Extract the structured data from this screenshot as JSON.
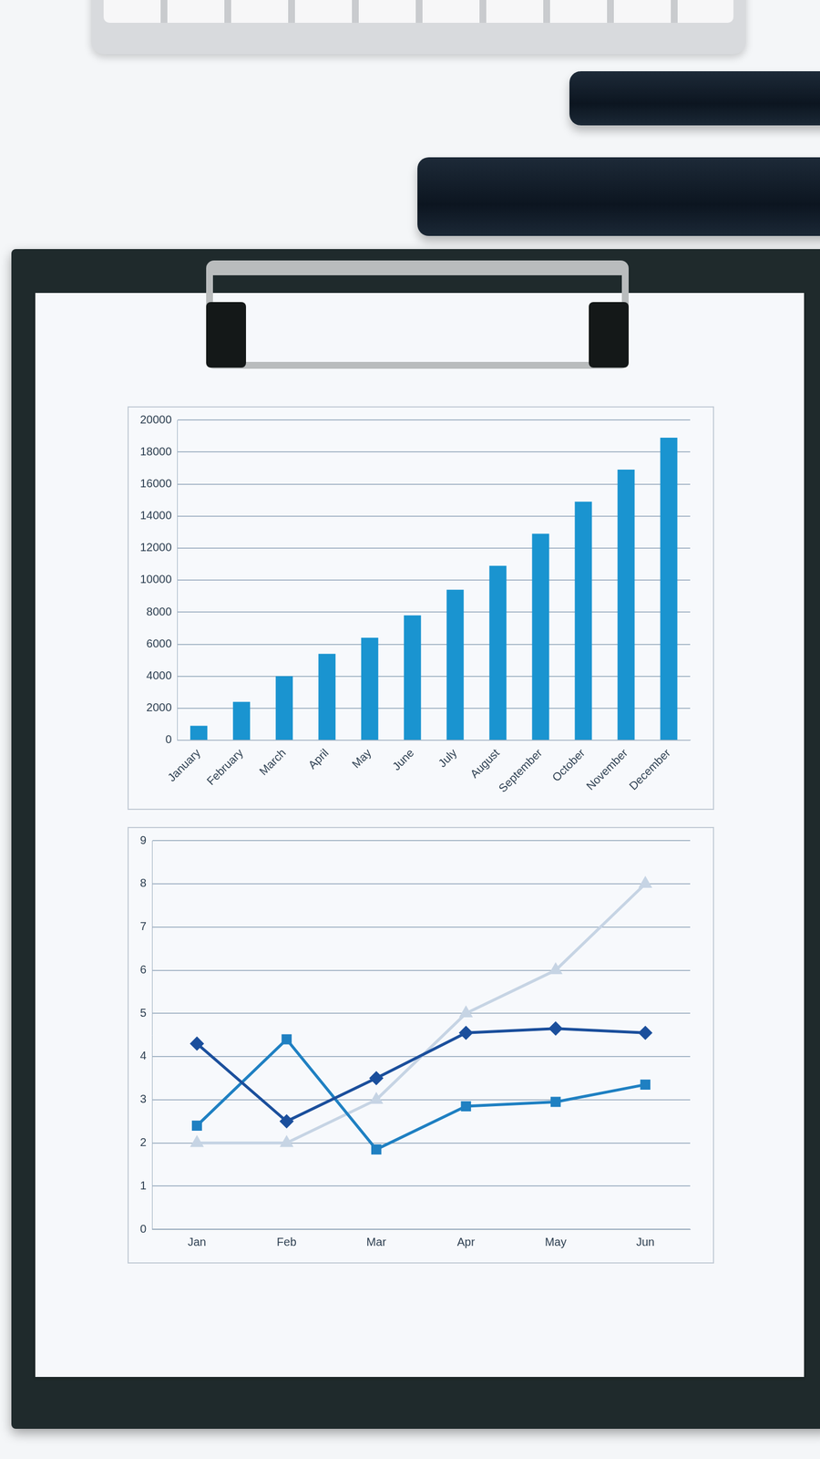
{
  "chart_data": [
    {
      "type": "bar",
      "categories": [
        "January",
        "February",
        "March",
        "April",
        "May",
        "June",
        "July",
        "August",
        "September",
        "October",
        "November",
        "December"
      ],
      "values": [
        900,
        2400,
        4000,
        5400,
        6400,
        7800,
        9400,
        10900,
        12900,
        14900,
        16900,
        18900
      ],
      "color": "#1a94d0",
      "ylim": [
        0,
        20000
      ],
      "yticks": [
        0,
        2000,
        4000,
        6000,
        8000,
        10000,
        12000,
        14000,
        16000,
        18000,
        20000
      ],
      "grid": true
    },
    {
      "type": "line",
      "categories": [
        "Jan",
        "Feb",
        "Mar",
        "Apr",
        "May",
        "Jun"
      ],
      "series": [
        {
          "color": "#1b4f9c",
          "marker": "diamond",
          "values": [
            4.3,
            2.5,
            3.5,
            4.55,
            4.65,
            4.55
          ]
        },
        {
          "color": "#1f80c2",
          "marker": "square",
          "values": [
            2.4,
            4.4,
            1.85,
            2.85,
            2.95,
            3.35
          ]
        },
        {
          "color": "#c6d4e4",
          "marker": "triangle",
          "values": [
            2,
            2,
            3,
            5,
            6,
            8
          ]
        }
      ],
      "ylim": [
        0,
        9
      ],
      "yticks": [
        0,
        1,
        2,
        3,
        4,
        5,
        6,
        7,
        8,
        9
      ],
      "grid": true
    }
  ]
}
